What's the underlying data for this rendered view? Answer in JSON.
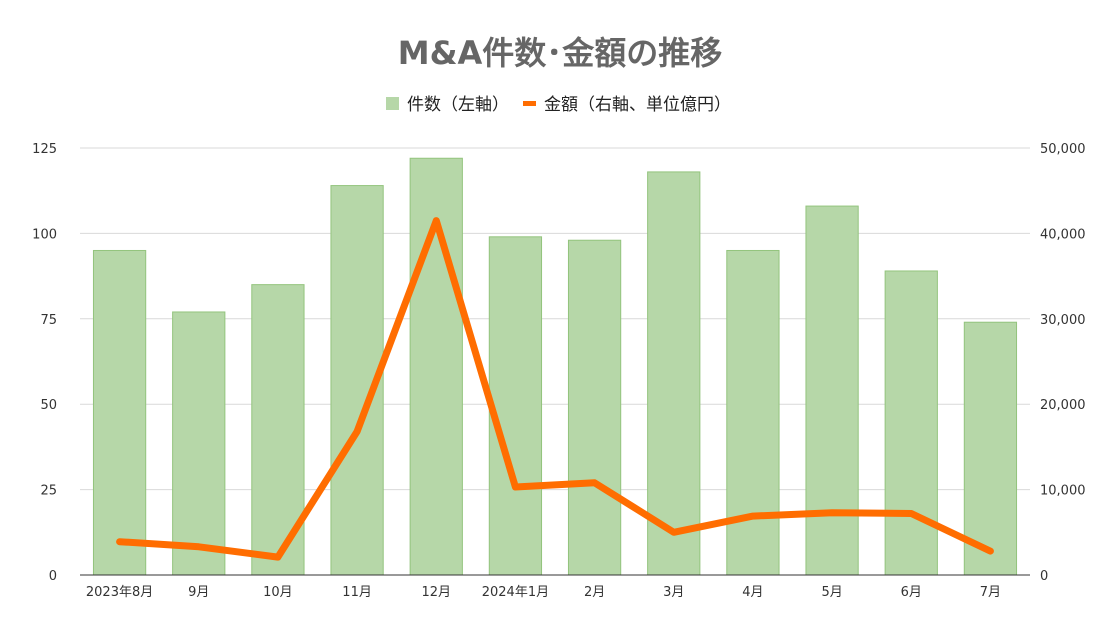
{
  "chart_data": {
    "type": "bar",
    "title": "M&A件数･金額の推移",
    "categories": [
      "2023年8月",
      "9月",
      "10月",
      "11月",
      "12月",
      "2024年1月",
      "2月",
      "3月",
      "4月",
      "5月",
      "6月",
      "7月"
    ],
    "series": [
      {
        "name": "件数（左軸）",
        "type": "bar",
        "axis": "left",
        "color": "#b6d7a8",
        "values": [
          95,
          77,
          85,
          114,
          122,
          99,
          98,
          118,
          95,
          108,
          89,
          74
        ]
      },
      {
        "name": "金額（右軸、単位億円）",
        "type": "line",
        "axis": "right",
        "color": "#ff6d01",
        "values": [
          3900,
          3300,
          2100,
          16800,
          41500,
          10300,
          10800,
          5000,
          6900,
          7300,
          7200,
          2800
        ]
      }
    ],
    "y_left": {
      "min": 0,
      "max": 125,
      "ticks": [
        "0",
        "25",
        "50",
        "75",
        "100",
        "125"
      ]
    },
    "y_right": {
      "min": 0,
      "max": 50000,
      "ticks": [
        "0",
        "10,000",
        "20,000",
        "30,000",
        "40,000",
        "50,000"
      ]
    },
    "grid": true,
    "legend_position": "top"
  }
}
